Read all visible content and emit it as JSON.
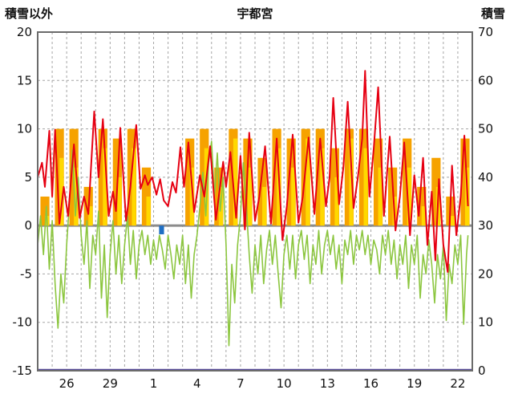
{
  "header": {
    "left_axis_title": "積雪以外",
    "title": "宇都宮",
    "right_axis_title": "積雪"
  },
  "chart_data": {
    "type": "line",
    "title": "宇都宮",
    "left_axis": {
      "title": "積雪以外",
      "min": -15,
      "max": 20,
      "ticks": [
        20,
        15,
        10,
        5,
        0,
        -5,
        -10,
        -15
      ]
    },
    "right_axis": {
      "title": "積雪",
      "min": 0,
      "max": 70,
      "ticks": [
        70,
        60,
        50,
        40,
        30,
        20,
        10,
        0
      ]
    },
    "x_axis": {
      "min": 0,
      "max": 30,
      "grid_interval": 1,
      "tick_positions": [
        2,
        5,
        8,
        11,
        14,
        17,
        20,
        23,
        26,
        29
      ],
      "tick_labels": [
        "26",
        "29",
        "1",
        "4",
        "7",
        "10",
        "13",
        "16",
        "19",
        "22"
      ]
    },
    "grid_color": "#A6A6A6",
    "zero_line_color": "#8C8C8C",
    "frame_color": "#6B6B6B",
    "series": [
      {
        "name": "sunshine-orange",
        "type": "bar",
        "color": "#F6A200",
        "values": [
          3,
          10,
          10,
          4,
          10,
          9,
          10,
          6,
          0,
          0,
          9,
          10,
          6,
          10,
          9,
          7,
          10,
          9,
          10,
          10,
          8,
          10,
          10,
          9,
          6,
          9,
          4,
          7,
          3,
          9
        ]
      },
      {
        "name": "sunshine-yellow",
        "type": "bar",
        "color": "#FFD800",
        "values": [
          1,
          7,
          6,
          2,
          8,
          5,
          8,
          3,
          0,
          0,
          6,
          8,
          4,
          9,
          6,
          4,
          8,
          6,
          9,
          8,
          5,
          9,
          8,
          6,
          3,
          6,
          2,
          4,
          1,
          6
        ]
      },
      {
        "name": "precipitation",
        "type": "downbar",
        "color": "#1F6FC4",
        "points": [
          [
            8.55,
            -0.9
          ]
        ]
      },
      {
        "name": "green-series",
        "type": "line",
        "color": "#8CC63F",
        "width": 1.6,
        "points": [
          [
            0.0,
            -2
          ],
          [
            0.2,
            1
          ],
          [
            0.4,
            -3
          ],
          [
            0.6,
            2
          ],
          [
            0.8,
            -4.5
          ],
          [
            1.0,
            0.5
          ],
          [
            1.2,
            -6
          ],
          [
            1.4,
            -10.6
          ],
          [
            1.6,
            -5
          ],
          [
            1.8,
            -8
          ],
          [
            2.0,
            -2
          ],
          [
            2.2,
            2.5
          ],
          [
            2.4,
            7.8
          ],
          [
            2.6,
            1
          ],
          [
            2.8,
            5
          ],
          [
            3.0,
            -1
          ],
          [
            3.2,
            -4
          ],
          [
            3.4,
            0.5
          ],
          [
            3.6,
            -6.5
          ],
          [
            3.8,
            -1
          ],
          [
            4.0,
            -3
          ],
          [
            4.2,
            1.5
          ],
          [
            4.4,
            -7.5
          ],
          [
            4.6,
            -2
          ],
          [
            4.8,
            -9.5
          ],
          [
            5.0,
            -3
          ],
          [
            5.2,
            0.5
          ],
          [
            5.4,
            -5
          ],
          [
            5.6,
            -1
          ],
          [
            5.8,
            -6
          ],
          [
            6.0,
            -2
          ],
          [
            6.2,
            1
          ],
          [
            6.4,
            -4
          ],
          [
            6.6,
            -0.5
          ],
          [
            6.8,
            -5.5
          ],
          [
            7.0,
            -2
          ],
          [
            7.2,
            -0.5
          ],
          [
            7.4,
            -3
          ],
          [
            7.6,
            -1
          ],
          [
            7.8,
            -4
          ],
          [
            8.0,
            -1.5
          ],
          [
            8.2,
            -3.5
          ],
          [
            8.4,
            -1
          ],
          [
            8.6,
            -2.5
          ],
          [
            8.8,
            -4.5
          ],
          [
            9.0,
            -1
          ],
          [
            9.2,
            -3
          ],
          [
            9.4,
            -5.5
          ],
          [
            9.6,
            -2
          ],
          [
            9.8,
            -4
          ],
          [
            10.0,
            -1
          ],
          [
            10.2,
            -6
          ],
          [
            10.4,
            -2
          ],
          [
            10.6,
            -7.5
          ],
          [
            10.8,
            -3
          ],
          [
            11.0,
            -1
          ],
          [
            11.2,
            2
          ],
          [
            11.4,
            5.5
          ],
          [
            11.6,
            1
          ],
          [
            11.8,
            6.5
          ],
          [
            12.0,
            8.7
          ],
          [
            12.2,
            3
          ],
          [
            12.4,
            7.5
          ],
          [
            12.6,
            1.5
          ],
          [
            12.8,
            5
          ],
          [
            13.0,
            -2
          ],
          [
            13.2,
            -12.4
          ],
          [
            13.4,
            -4
          ],
          [
            13.6,
            -8
          ],
          [
            13.8,
            -2
          ],
          [
            14.0,
            1
          ],
          [
            14.2,
            6.5
          ],
          [
            14.4,
            2
          ],
          [
            14.6,
            -3
          ],
          [
            14.8,
            -7
          ],
          [
            15.0,
            -2
          ],
          [
            15.2,
            -5
          ],
          [
            15.4,
            -1
          ],
          [
            15.6,
            -6
          ],
          [
            15.8,
            -2.5
          ],
          [
            16.0,
            -0.5
          ],
          [
            16.2,
            -4
          ],
          [
            16.4,
            -1
          ],
          [
            16.6,
            -5
          ],
          [
            16.8,
            -8.5
          ],
          [
            17.0,
            -3
          ],
          [
            17.2,
            -1
          ],
          [
            17.4,
            -4.5
          ],
          [
            17.6,
            -1
          ],
          [
            17.8,
            -5.5
          ],
          [
            18.0,
            -2
          ],
          [
            18.2,
            -0.5
          ],
          [
            18.4,
            -3.5
          ],
          [
            18.6,
            -1
          ],
          [
            18.8,
            -6
          ],
          [
            19.0,
            -2
          ],
          [
            19.2,
            -4
          ],
          [
            19.4,
            -0.5
          ],
          [
            19.6,
            -5
          ],
          [
            19.8,
            -2
          ],
          [
            20.0,
            -0.5
          ],
          [
            20.2,
            -3
          ],
          [
            20.4,
            -1
          ],
          [
            20.6,
            -4.5
          ],
          [
            20.8,
            -2
          ],
          [
            21.0,
            -6
          ],
          [
            21.2,
            -1.5
          ],
          [
            21.4,
            -3
          ],
          [
            21.6,
            -0.5
          ],
          [
            21.8,
            -4
          ],
          [
            22.0,
            -1
          ],
          [
            22.2,
            -2.5
          ],
          [
            22.4,
            -0.5
          ],
          [
            22.6,
            -3
          ],
          [
            22.8,
            -1
          ],
          [
            23.0,
            -4
          ],
          [
            23.2,
            -1.5
          ],
          [
            23.4,
            -2.5
          ],
          [
            23.6,
            -5
          ],
          [
            23.8,
            -1
          ],
          [
            24.0,
            -3
          ],
          [
            24.2,
            -0.5
          ],
          [
            24.4,
            -4
          ],
          [
            24.6,
            -1.5
          ],
          [
            24.8,
            -5.5
          ],
          [
            25.0,
            -2
          ],
          [
            25.2,
            -4
          ],
          [
            25.4,
            -1
          ],
          [
            25.6,
            -6.5
          ],
          [
            25.8,
            -2
          ],
          [
            26.0,
            -4
          ],
          [
            26.2,
            -1
          ],
          [
            26.4,
            -7.5
          ],
          [
            26.6,
            -3
          ],
          [
            26.8,
            -5
          ],
          [
            27.0,
            -1.5
          ],
          [
            27.2,
            -4
          ],
          [
            27.4,
            -8
          ],
          [
            27.6,
            -3
          ],
          [
            27.8,
            -5.5
          ],
          [
            28.0,
            -2
          ],
          [
            28.2,
            -9.8
          ],
          [
            28.4,
            -4
          ],
          [
            28.6,
            -6
          ],
          [
            28.8,
            -2
          ],
          [
            29.0,
            -4
          ],
          [
            29.2,
            -1
          ],
          [
            29.4,
            -10.2
          ],
          [
            29.6,
            -3
          ],
          [
            29.7,
            -1
          ]
        ]
      },
      {
        "name": "temperature",
        "type": "line",
        "color": "#E60012",
        "width": 2,
        "points": [
          [
            0.0,
            5
          ],
          [
            0.3,
            6.5
          ],
          [
            0.5,
            4
          ],
          [
            0.8,
            9.8
          ],
          [
            1.0,
            3
          ],
          [
            1.2,
            9.9
          ],
          [
            1.5,
            0.2
          ],
          [
            1.8,
            4
          ],
          [
            2.1,
            1
          ],
          [
            2.5,
            8.4
          ],
          [
            2.9,
            0.8
          ],
          [
            3.2,
            3
          ],
          [
            3.5,
            1.2
          ],
          [
            3.9,
            11.8
          ],
          [
            4.2,
            5
          ],
          [
            4.5,
            11
          ],
          [
            4.9,
            1
          ],
          [
            5.2,
            3.5
          ],
          [
            5.4,
            1.5
          ],
          [
            5.7,
            10.1
          ],
          [
            6.1,
            0.5
          ],
          [
            6.4,
            4
          ],
          [
            6.8,
            10.4
          ],
          [
            7.1,
            3.8
          ],
          [
            7.4,
            5.2
          ],
          [
            7.6,
            4.2
          ],
          [
            7.9,
            5
          ],
          [
            8.2,
            3.2
          ],
          [
            8.45,
            4.8
          ],
          [
            8.7,
            2.6
          ],
          [
            9.0,
            2.0
          ],
          [
            9.3,
            4.5
          ],
          [
            9.55,
            3.4
          ],
          [
            9.85,
            8.1
          ],
          [
            10.1,
            4
          ],
          [
            10.4,
            8.6
          ],
          [
            10.8,
            1.4
          ],
          [
            11.2,
            5.2
          ],
          [
            11.5,
            3
          ],
          [
            11.9,
            8.2
          ],
          [
            12.3,
            0.6
          ],
          [
            12.8,
            6.6
          ],
          [
            13.0,
            4
          ],
          [
            13.3,
            7.6
          ],
          [
            13.7,
            0.8
          ],
          [
            14.0,
            7.2
          ],
          [
            14.3,
            -0.4
          ],
          [
            14.6,
            9.6
          ],
          [
            15.0,
            0.5
          ],
          [
            15.3,
            3
          ],
          [
            15.7,
            8.2
          ],
          [
            16.1,
            0.2
          ],
          [
            16.5,
            9.0
          ],
          [
            16.9,
            -1.5
          ],
          [
            17.2,
            2
          ],
          [
            17.6,
            9.4
          ],
          [
            18.0,
            0.3
          ],
          [
            18.3,
            3
          ],
          [
            18.7,
            9.1
          ],
          [
            19.1,
            1.2
          ],
          [
            19.5,
            9.0
          ],
          [
            19.9,
            2
          ],
          [
            20.15,
            5
          ],
          [
            20.4,
            13.2
          ],
          [
            20.8,
            2.2
          ],
          [
            21.1,
            6
          ],
          [
            21.4,
            12.8
          ],
          [
            21.8,
            1.8
          ],
          [
            22.1,
            5
          ],
          [
            22.4,
            9
          ],
          [
            22.6,
            16
          ],
          [
            22.9,
            3
          ],
          [
            23.2,
            8
          ],
          [
            23.5,
            14.3
          ],
          [
            23.9,
            1
          ],
          [
            24.3,
            9.2
          ],
          [
            24.7,
            -0.5
          ],
          [
            25.0,
            3
          ],
          [
            25.3,
            8.6
          ],
          [
            25.7,
            -1
          ],
          [
            26.0,
            5.2
          ],
          [
            26.3,
            1
          ],
          [
            26.6,
            7
          ],
          [
            26.9,
            -2
          ],
          [
            27.2,
            3.5
          ],
          [
            27.45,
            -3.6
          ],
          [
            27.7,
            4.8
          ],
          [
            28.0,
            -2
          ],
          [
            28.3,
            -4.8
          ],
          [
            28.6,
            6.2
          ],
          [
            28.9,
            -1
          ],
          [
            29.2,
            3
          ],
          [
            29.45,
            9.3
          ],
          [
            29.7,
            2
          ]
        ]
      },
      {
        "name": "snow-depth",
        "type": "line-right",
        "color": "#5A4E9E",
        "width": 2.5,
        "points": [
          [
            0,
            0
          ],
          [
            30,
            0
          ]
        ]
      }
    ]
  }
}
